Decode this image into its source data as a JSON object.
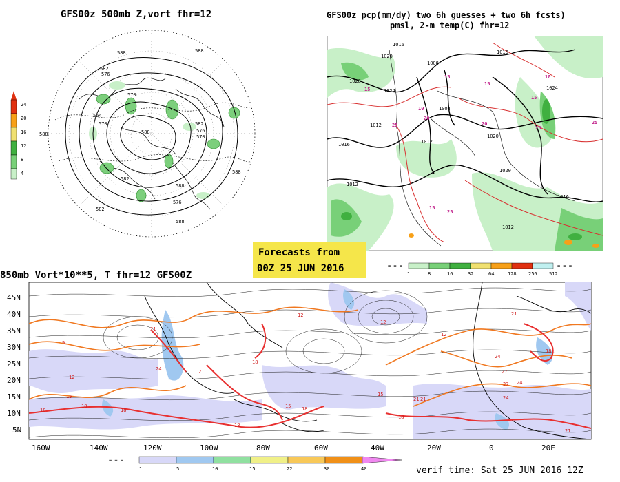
{
  "panel_tl": {
    "title": "GFS00z  500mb Z,vort   fhr=12",
    "colorbar": {
      "ticks": [
        "24",
        "20",
        "16",
        "12",
        "8",
        "4"
      ],
      "colors": [
        "#e03010",
        "#f7a018",
        "#f0e070",
        "#40b040",
        "#78d078",
        "#c8f0c8"
      ]
    },
    "height_labels": [
      "588",
      "588",
      "582",
      "576",
      "570",
      "564",
      "570",
      "582",
      "576",
      "570",
      "588",
      "588",
      "582",
      "576",
      "588",
      "582",
      "588",
      "588"
    ]
  },
  "panel_tr": {
    "title_line1": "GFS00z pcp(mm/dy) two 6h guesses + two 6h fcsts)",
    "title_line2": "pmsl, 2-m temp(C)  fhr=12",
    "pressure_labels": [
      "1016",
      "1020",
      "1028",
      "1024",
      "1012",
      "1016",
      "1008",
      "1004",
      "1012",
      "1020",
      "1016",
      "1012",
      "1020",
      "1016",
      "1012",
      "1024"
    ],
    "temp_labels": [
      "15",
      "10",
      "15",
      "20",
      "25",
      "15",
      "10",
      "15",
      "20",
      "25",
      "15",
      "25",
      "25"
    ],
    "precip_colorbar": {
      "ticks": [
        "1",
        "8",
        "16",
        "32",
        "64",
        "128",
        "256",
        "512"
      ],
      "colors": [
        "#c8f0c8",
        "#78d078",
        "#40b040",
        "#f0e070",
        "#f7a018",
        "#e03010",
        "#c0f0f0"
      ]
    }
  },
  "badge": {
    "line1": "Forecasts from",
    "line2": "00Z 25 JUN 2016",
    "bg": "#f5e64a"
  },
  "panel_bottom": {
    "title": "850mb Vort*10**5, T  fhr=12 GFS00Z",
    "lat_labels": [
      "45N",
      "40N",
      "35N",
      "30N",
      "25N",
      "20N",
      "15N",
      "10N",
      "5N"
    ],
    "lon_labels": [
      "160W",
      "140W",
      "120W",
      "100W",
      "80W",
      "60W",
      "40W",
      "20W",
      "0",
      "20E"
    ],
    "temp_labels": [
      "12",
      "15",
      "9",
      "18",
      "21",
      "24",
      "21",
      "18",
      "15",
      "18",
      "18",
      "18",
      "12",
      "12",
      "15",
      "18",
      "21",
      "24",
      "21",
      "27",
      "24",
      "18",
      "15",
      "12",
      "21",
      "24",
      "18",
      "27",
      "21"
    ],
    "colorbar": {
      "ticks": [
        "1",
        "5",
        "10",
        "15",
        "22",
        "30",
        "40"
      ],
      "colors": [
        "#d8d8f8",
        "#a0c8f0",
        "#90e0a0",
        "#f0f088",
        "#f8c858",
        "#f09018",
        "#f088f0"
      ]
    }
  },
  "verif_time": "verif time: Sat 25 JUN 2016 12Z"
}
